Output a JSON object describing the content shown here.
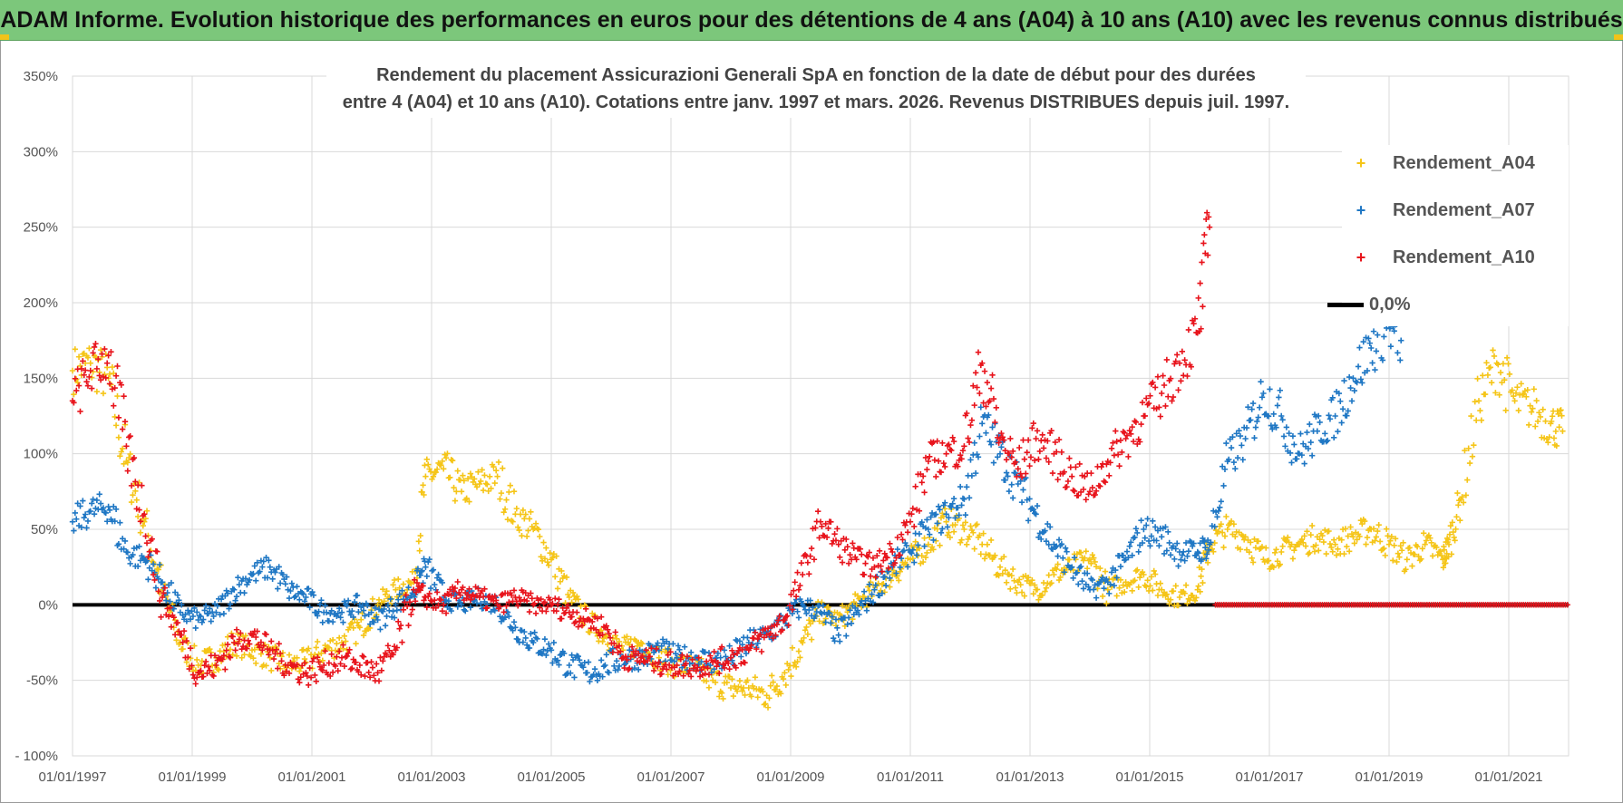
{
  "banner": {
    "title": "ADAM Informe. Evolution historique des performances en euros pour des détentions de 4 ans (A04) à 10 ans (A10) avec les revenus connus distribués"
  },
  "chart_data": {
    "type": "scatter",
    "title_line1": "Rendement du placement Assicurazioni Generali SpA en fonction de la date de début pour des durées",
    "title_line2": "entre 4 (A04) et 10 ans (A10). Cotations entre janv. 1997 et mars. 2026. Revenus DISTRIBUES depuis juil. 1997.",
    "xlim": [
      1997.0,
      2022.0
    ],
    "ylim": [
      -100,
      350
    ],
    "x_ticks": [
      "01/01/1997",
      "01/01/1999",
      "01/01/2001",
      "01/01/2003",
      "01/01/2005",
      "01/01/2007",
      "01/01/2009",
      "01/01/2011",
      "01/01/2013",
      "01/01/2015",
      "01/01/2017",
      "01/01/2019",
      "01/01/2021"
    ],
    "y_ticks": [
      "350%",
      "300%",
      "250%",
      "200%",
      "150%",
      "100%",
      "50%",
      "0%",
      "-50%",
      "- 100%"
    ],
    "y_tick_values": [
      350,
      300,
      250,
      200,
      150,
      100,
      50,
      0,
      -50,
      -100
    ],
    "grid": true,
    "legend_position": "right",
    "marker": "+",
    "series": [
      {
        "name": "Rendement_A04",
        "color": "#f5c518",
        "x": [
          1997.0,
          1997.3,
          1997.6,
          1997.9,
          1998.2,
          1998.5,
          1998.8,
          1999.1,
          1999.4,
          1999.7,
          2000.0,
          2000.3,
          2000.6,
          2000.9,
          2001.2,
          2001.5,
          2001.8,
          2002.1,
          2002.4,
          2002.7,
          2002.9,
          2003.2,
          2003.5,
          2003.8,
          2004.1,
          2004.4,
          2004.7,
          2005.0,
          2005.3,
          2005.6,
          2005.9,
          2006.2,
          2006.5,
          2006.8,
          2007.1,
          2007.4,
          2007.7,
          2008.0,
          2008.3,
          2008.6,
          2008.9,
          2009.2,
          2009.5,
          2009.8,
          2010.1,
          2010.4,
          2010.7,
          2011.0,
          2011.3,
          2011.6,
          2011.9,
          2012.2,
          2012.5,
          2012.8,
          2013.1,
          2013.4,
          2013.7,
          2014.0,
          2014.3,
          2014.6,
          2014.9,
          2015.2,
          2015.5,
          2015.8,
          2016.0,
          2016.3,
          2016.6,
          2016.9,
          2017.2,
          2017.5,
          2017.8,
          2018.1,
          2018.4,
          2018.7,
          2019.0,
          2019.3,
          2019.6,
          2019.9,
          2020.0,
          2020.2,
          2020.5,
          2020.8,
          2021.1,
          2021.4,
          2021.7,
          2021.9
        ],
        "values": [
          155,
          160,
          150,
          95,
          55,
          10,
          -25,
          -40,
          -35,
          -25,
          -30,
          -35,
          -40,
          -38,
          -30,
          -25,
          -15,
          0,
          10,
          15,
          85,
          90,
          75,
          80,
          85,
          60,
          50,
          30,
          5,
          -10,
          -20,
          -30,
          -25,
          -35,
          -40,
          -42,
          -50,
          -55,
          -55,
          -60,
          -45,
          -25,
          -5,
          -10,
          0,
          10,
          20,
          30,
          40,
          55,
          50,
          40,
          25,
          15,
          10,
          20,
          25,
          30,
          10,
          15,
          20,
          10,
          5,
          10,
          40,
          50,
          45,
          30,
          35,
          40,
          45,
          40,
          45,
          50,
          40,
          30,
          40,
          30,
          40,
          70,
          135,
          160,
          135,
          130,
          120,
          115
        ]
      },
      {
        "name": "Rendement_A07",
        "color": "#1f77c4",
        "x": [
          1997.0,
          1997.3,
          1997.6,
          1997.9,
          1998.2,
          1998.5,
          1998.8,
          1999.1,
          1999.4,
          1999.7,
          2000.0,
          2000.3,
          2000.6,
          2000.9,
          2001.2,
          2001.5,
          2001.8,
          2002.1,
          2002.4,
          2002.7,
          2002.9,
          2003.2,
          2003.5,
          2003.8,
          2004.1,
          2004.4,
          2004.7,
          2005.0,
          2005.3,
          2005.6,
          2005.9,
          2006.2,
          2006.5,
          2006.8,
          2007.1,
          2007.4,
          2007.7,
          2008.0,
          2008.3,
          2008.6,
          2008.9,
          2009.2,
          2009.5,
          2009.8,
          2010.1,
          2010.4,
          2010.7,
          2011.0,
          2011.3,
          2011.6,
          2011.9,
          2012.2,
          2012.5,
          2012.8,
          2013.1,
          2013.4,
          2013.7,
          2014.0,
          2014.3,
          2014.6,
          2014.9,
          2015.2,
          2015.5,
          2015.8,
          2016.0,
          2016.3,
          2016.6,
          2016.9,
          2017.2,
          2017.5,
          2017.8,
          2018.1,
          2018.4,
          2018.7,
          2019.0,
          2019.2
        ],
        "values": [
          55,
          62,
          65,
          35,
          30,
          15,
          -5,
          -10,
          -5,
          10,
          20,
          25,
          10,
          5,
          -5,
          -5,
          0,
          -10,
          0,
          10,
          25,
          5,
          0,
          5,
          0,
          -15,
          -25,
          -30,
          -40,
          -45,
          -40,
          -35,
          -35,
          -30,
          -35,
          -35,
          -38,
          -35,
          -25,
          -20,
          -10,
          0,
          -5,
          -20,
          -5,
          10,
          25,
          35,
          50,
          60,
          70,
          120,
          100,
          80,
          60,
          40,
          25,
          10,
          15,
          30,
          50,
          45,
          35,
          35,
          40,
          95,
          110,
          140,
          125,
          100,
          115,
          125,
          150,
          170,
          185,
          175
        ]
      },
      {
        "name": "Rendement_A10",
        "color": "#e8141c",
        "x": [
          1997.0,
          1997.3,
          1997.6,
          1997.9,
          1998.2,
          1998.5,
          1998.8,
          1999.1,
          1999.4,
          1999.7,
          2000.0,
          2000.3,
          2000.6,
          2000.9,
          2001.2,
          2001.5,
          2001.8,
          2002.1,
          2002.4,
          2002.7,
          2002.9,
          2003.2,
          2003.5,
          2003.8,
          2004.1,
          2004.4,
          2004.7,
          2005.0,
          2005.3,
          2005.6,
          2005.9,
          2006.2,
          2006.5,
          2006.8,
          2007.1,
          2007.4,
          2007.7,
          2008.0,
          2008.3,
          2008.6,
          2008.9,
          2009.2,
          2009.5,
          2009.8,
          2010.1,
          2010.4,
          2010.7,
          2011.0,
          2011.3,
          2011.6,
          2011.9,
          2012.2,
          2012.5,
          2012.8,
          2013.1,
          2013.4,
          2013.7,
          2014.0,
          2014.3,
          2014.6,
          2014.9,
          2015.2,
          2015.5,
          2015.8,
          2016.0
        ],
        "values": [
          135,
          155,
          165,
          105,
          60,
          5,
          -20,
          -45,
          -40,
          -25,
          -20,
          -30,
          -40,
          -45,
          -40,
          -35,
          -40,
          -45,
          -30,
          10,
          5,
          0,
          10,
          5,
          0,
          5,
          0,
          0,
          -5,
          -10,
          -15,
          -35,
          -35,
          -38,
          -40,
          -40,
          -38,
          -35,
          -30,
          -20,
          -10,
          20,
          55,
          40,
          30,
          25,
          35,
          55,
          95,
          100,
          105,
          160,
          110,
          90,
          110,
          100,
          85,
          75,
          95,
          110,
          125,
          140,
          160,
          180,
          250
        ]
      },
      {
        "name": "0,0%",
        "color": "#000000",
        "x": [
          1997.0,
          2022.0
        ],
        "values": [
          0,
          0
        ]
      }
    ],
    "a10_zero_from": 2016.1,
    "a10_zero_to": 2022.0
  }
}
